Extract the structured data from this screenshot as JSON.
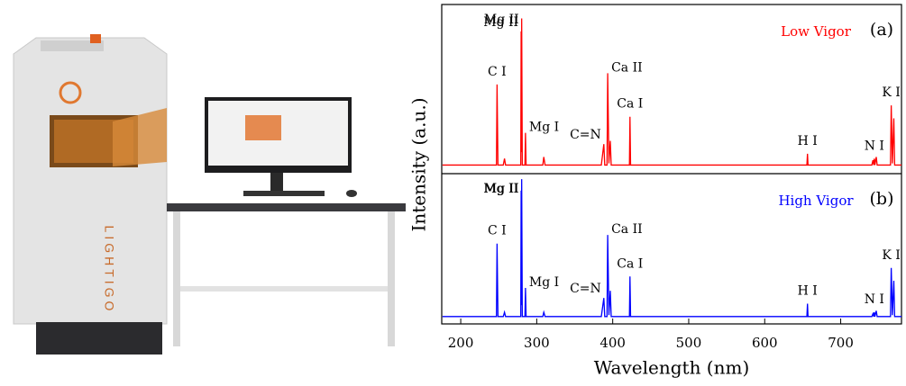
{
  "photo": {
    "brand": "LIGHTIGO"
  },
  "chart_data": {
    "type": "line",
    "xlabel": "Wavelength (nm)",
    "ylabel": "Intensity (a.u.)",
    "xlim": [
      175,
      780
    ],
    "xticks": [
      200,
      300,
      400,
      500,
      600,
      700
    ],
    "ylim": [
      0,
      1
    ],
    "x": [
      176,
      247,
      247.8,
      249,
      256,
      257.6,
      259,
      279,
      279.5,
      279.85,
      280.2,
      281,
      284.5,
      285.2,
      286,
      308,
      309.3,
      311,
      385,
      388.3,
      389.5,
      392.5,
      393.4,
      395,
      396.8,
      398,
      422,
      422.7,
      423.5,
      655.5,
      656.3,
      657,
      741,
      742.4,
      743.5,
      744.2,
      745,
      746.8,
      748,
      765.5,
      766.5,
      768,
      769.9,
      771,
      780
    ],
    "peak_labels": [
      {
        "text": "C I",
        "x": 247.8
      },
      {
        "text": "Mg II",
        "x": 279.5
      },
      {
        "text": "Mg II",
        "x": 280.2
      },
      {
        "text": "Mg I",
        "x": 285.2
      },
      {
        "text": "C=N",
        "x": 388.3
      },
      {
        "text": "Ca II",
        "x": 393.4
      },
      {
        "text": "Ca I",
        "x": 422.7
      },
      {
        "text": "H I",
        "x": 656.3
      },
      {
        "text": "N I",
        "x": 744.2
      },
      {
        "text": "K I",
        "x": 766.5
      }
    ],
    "series": [
      {
        "name": "Low Vigor",
        "panel_label": "(a)",
        "color": "#ff0000",
        "values": [
          0.02,
          0.02,
          0.52,
          0.02,
          0.02,
          0.06,
          0.02,
          0.02,
          0.85,
          0.1,
          0.93,
          0.02,
          0.02,
          0.22,
          0.02,
          0.02,
          0.07,
          0.02,
          0.02,
          0.15,
          0.02,
          0.02,
          0.59,
          0.03,
          0.17,
          0.02,
          0.02,
          0.32,
          0.02,
          0.02,
          0.09,
          0.02,
          0.02,
          0.05,
          0.02,
          0.06,
          0.02,
          0.07,
          0.02,
          0.02,
          0.39,
          0.03,
          0.31,
          0.02,
          0.02
        ]
      },
      {
        "name": "High Vigor",
        "panel_label": "(b)",
        "color": "#0000ff",
        "values": [
          0.02,
          0.02,
          0.53,
          0.02,
          0.02,
          0.05,
          0.02,
          0.02,
          0.9,
          0.1,
          0.98,
          0.02,
          0.02,
          0.22,
          0.02,
          0.02,
          0.05,
          0.02,
          0.02,
          0.15,
          0.02,
          0.02,
          0.59,
          0.03,
          0.2,
          0.02,
          0.02,
          0.3,
          0.02,
          0.02,
          0.11,
          0.02,
          0.02,
          0.04,
          0.02,
          0.05,
          0.02,
          0.06,
          0.02,
          0.02,
          0.36,
          0.03,
          0.27,
          0.02,
          0.02
        ]
      }
    ]
  }
}
